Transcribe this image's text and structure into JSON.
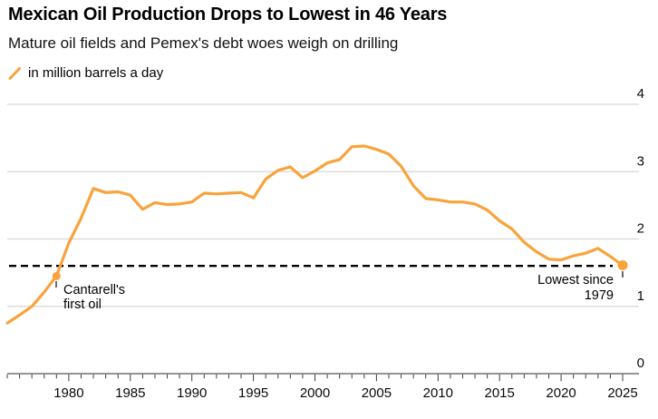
{
  "header": {
    "title": "Mexican Oil Production Drops to Lowest in 46 Years",
    "subtitle": "Mature oil fields and Pemex's debt woes weigh on drilling",
    "legend_label": "in million barrels a day"
  },
  "colors": {
    "line": "#F8A33C",
    "grid": "#D7D7D7",
    "axis": "#707070",
    "tick": "#3C3C3C",
    "reference": "#000000",
    "text": "#000000"
  },
  "annotations": {
    "cantarell": {
      "line1": "Cantarell's",
      "line2": "first oil",
      "year": 1979,
      "value": 1.45
    },
    "lowest": {
      "line1": "Lowest since",
      "line2": "1979",
      "year": 2025,
      "value": 1.61
    }
  },
  "chart_data": {
    "type": "line",
    "title": "Mexican Oil Production Drops to Lowest in 46 Years",
    "subtitle": "Mature oil fields and Pemex's debt woes weigh on drilling",
    "ylabel": "in million barrels a day",
    "xlabel": "",
    "grid": "horizontal",
    "legend_position": "top-left",
    "ylim": [
      0,
      4
    ],
    "y_ticks": [
      0,
      1,
      2,
      3,
      4
    ],
    "x_label_ticks": [
      1980,
      1985,
      1990,
      1995,
      2000,
      2005,
      2010,
      2015,
      2020,
      2025
    ],
    "reference_line": {
      "value": 1.6,
      "style": "dashed",
      "meaning": "Lowest since 1979"
    },
    "x": [
      1975,
      1976,
      1977,
      1978,
      1979,
      1980,
      1981,
      1982,
      1983,
      1984,
      1985,
      1986,
      1987,
      1988,
      1989,
      1990,
      1991,
      1992,
      1993,
      1994,
      1995,
      1996,
      1997,
      1998,
      1999,
      2000,
      2001,
      2002,
      2003,
      2004,
      2005,
      2006,
      2007,
      2008,
      2009,
      2010,
      2011,
      2012,
      2013,
      2014,
      2015,
      2016,
      2017,
      2018,
      2019,
      2020,
      2021,
      2022,
      2023,
      2024,
      2025
    ],
    "series": [
      {
        "name": "Mexican oil production (million barrels a day)",
        "values": [
          0.75,
          0.87,
          1.0,
          1.21,
          1.45,
          1.94,
          2.31,
          2.75,
          2.69,
          2.7,
          2.65,
          2.44,
          2.54,
          2.51,
          2.52,
          2.55,
          2.68,
          2.67,
          2.68,
          2.69,
          2.61,
          2.89,
          3.02,
          3.07,
          2.91,
          3.01,
          3.13,
          3.18,
          3.37,
          3.38,
          3.33,
          3.26,
          3.08,
          2.79,
          2.6,
          2.58,
          2.55,
          2.55,
          2.52,
          2.43,
          2.27,
          2.15,
          1.95,
          1.81,
          1.7,
          1.69,
          1.75,
          1.79,
          1.86,
          1.74,
          1.61
        ]
      }
    ],
    "point_markers": [
      {
        "year": 1979,
        "value": 1.45,
        "label": "Cantarell's first oil"
      },
      {
        "year": 2025,
        "value": 1.61,
        "label": "Lowest since 1979"
      }
    ]
  }
}
